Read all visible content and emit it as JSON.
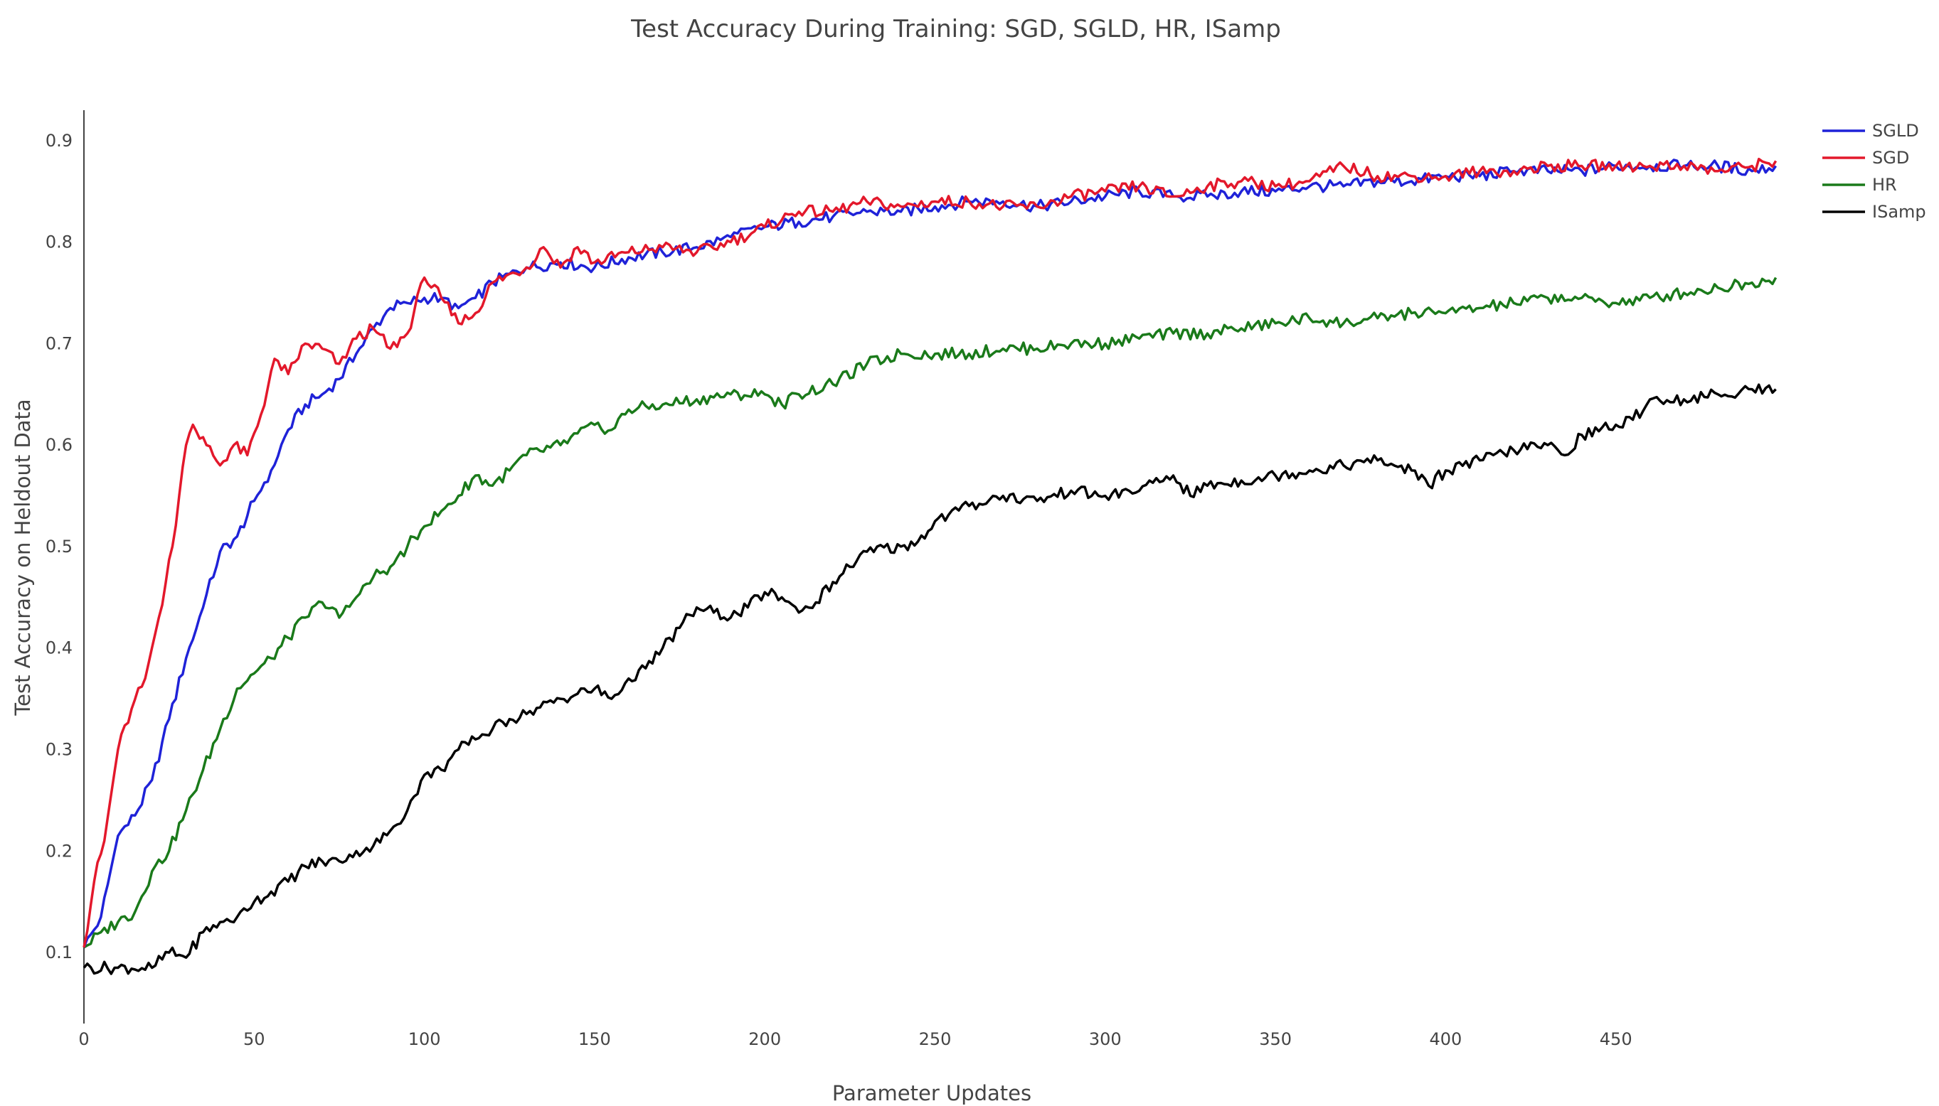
{
  "chart_data": {
    "type": "line",
    "title": "Test Accuracy During Training: SGD, SGLD, HR, ISamp",
    "xlabel": "Parameter Updates",
    "ylabel": "Test Accuracy on Heldout Data",
    "xlim": [
      0,
      500
    ],
    "ylim": [
      0.03,
      0.93
    ],
    "x_ticks": [
      0,
      50,
      100,
      150,
      200,
      250,
      300,
      350,
      400,
      450
    ],
    "y_ticks": [
      0.1,
      0.2,
      0.3,
      0.4,
      0.5,
      0.6,
      0.7,
      0.8,
      0.9
    ],
    "grid": false,
    "legend_position": "top-right",
    "series": [
      {
        "name": "SGLD",
        "color": "#1f22d8",
        "points": [
          [
            0,
            0.105
          ],
          [
            5,
            0.135
          ],
          [
            10,
            0.215
          ],
          [
            15,
            0.235
          ],
          [
            20,
            0.27
          ],
          [
            25,
            0.33
          ],
          [
            30,
            0.39
          ],
          [
            35,
            0.44
          ],
          [
            40,
            0.495
          ],
          [
            45,
            0.51
          ],
          [
            50,
            0.545
          ],
          [
            55,
            0.575
          ],
          [
            60,
            0.615
          ],
          [
            65,
            0.64
          ],
          [
            70,
            0.65
          ],
          [
            75,
            0.665
          ],
          [
            80,
            0.69
          ],
          [
            85,
            0.715
          ],
          [
            90,
            0.735
          ],
          [
            95,
            0.74
          ],
          [
            100,
            0.745
          ],
          [
            105,
            0.745
          ],
          [
            110,
            0.735
          ],
          [
            115,
            0.745
          ],
          [
            120,
            0.76
          ],
          [
            130,
            0.775
          ],
          [
            140,
            0.78
          ],
          [
            150,
            0.775
          ],
          [
            160,
            0.785
          ],
          [
            170,
            0.79
          ],
          [
            180,
            0.795
          ],
          [
            190,
            0.805
          ],
          [
            200,
            0.815
          ],
          [
            210,
            0.82
          ],
          [
            220,
            0.825
          ],
          [
            230,
            0.83
          ],
          [
            240,
            0.83
          ],
          [
            250,
            0.835
          ],
          [
            260,
            0.84
          ],
          [
            270,
            0.84
          ],
          [
            280,
            0.835
          ],
          [
            290,
            0.84
          ],
          [
            300,
            0.845
          ],
          [
            310,
            0.85
          ],
          [
            320,
            0.845
          ],
          [
            330,
            0.845
          ],
          [
            340,
            0.85
          ],
          [
            350,
            0.85
          ],
          [
            360,
            0.855
          ],
          [
            370,
            0.855
          ],
          [
            380,
            0.86
          ],
          [
            390,
            0.86
          ],
          [
            400,
            0.865
          ],
          [
            410,
            0.865
          ],
          [
            420,
            0.87
          ],
          [
            430,
            0.87
          ],
          [
            440,
            0.87
          ],
          [
            450,
            0.875
          ],
          [
            460,
            0.875
          ],
          [
            470,
            0.875
          ],
          [
            480,
            0.875
          ],
          [
            490,
            0.87
          ],
          [
            497,
            0.875
          ]
        ]
      },
      {
        "name": "SGD",
        "color": "#e3182b",
        "points": [
          [
            0,
            0.105
          ],
          [
            3,
            0.17
          ],
          [
            6,
            0.21
          ],
          [
            10,
            0.3
          ],
          [
            14,
            0.34
          ],
          [
            18,
            0.37
          ],
          [
            22,
            0.43
          ],
          [
            26,
            0.5
          ],
          [
            30,
            0.6
          ],
          [
            32,
            0.62
          ],
          [
            36,
            0.6
          ],
          [
            40,
            0.58
          ],
          [
            44,
            0.6
          ],
          [
            48,
            0.59
          ],
          [
            52,
            0.63
          ],
          [
            56,
            0.685
          ],
          [
            60,
            0.67
          ],
          [
            65,
            0.7
          ],
          [
            70,
            0.695
          ],
          [
            75,
            0.68
          ],
          [
            80,
            0.705
          ],
          [
            85,
            0.715
          ],
          [
            90,
            0.695
          ],
          [
            95,
            0.71
          ],
          [
            100,
            0.765
          ],
          [
            105,
            0.745
          ],
          [
            110,
            0.72
          ],
          [
            115,
            0.73
          ],
          [
            120,
            0.76
          ],
          [
            130,
            0.775
          ],
          [
            135,
            0.795
          ],
          [
            140,
            0.775
          ],
          [
            145,
            0.795
          ],
          [
            150,
            0.78
          ],
          [
            160,
            0.79
          ],
          [
            170,
            0.795
          ],
          [
            180,
            0.79
          ],
          [
            190,
            0.8
          ],
          [
            200,
            0.815
          ],
          [
            210,
            0.83
          ],
          [
            220,
            0.83
          ],
          [
            230,
            0.84
          ],
          [
            240,
            0.835
          ],
          [
            250,
            0.84
          ],
          [
            260,
            0.84
          ],
          [
            270,
            0.835
          ],
          [
            280,
            0.835
          ],
          [
            290,
            0.845
          ],
          [
            300,
            0.85
          ],
          [
            310,
            0.855
          ],
          [
            320,
            0.845
          ],
          [
            330,
            0.855
          ],
          [
            340,
            0.86
          ],
          [
            350,
            0.855
          ],
          [
            360,
            0.86
          ],
          [
            370,
            0.875
          ],
          [
            380,
            0.865
          ],
          [
            390,
            0.865
          ],
          [
            400,
            0.865
          ],
          [
            410,
            0.87
          ],
          [
            420,
            0.87
          ],
          [
            430,
            0.875
          ],
          [
            440,
            0.875
          ],
          [
            450,
            0.875
          ],
          [
            460,
            0.875
          ],
          [
            470,
            0.875
          ],
          [
            480,
            0.87
          ],
          [
            490,
            0.875
          ],
          [
            497,
            0.88
          ]
        ]
      },
      {
        "name": "HR",
        "color": "#1a7a1a",
        "points": [
          [
            0,
            0.105
          ],
          [
            5,
            0.12
          ],
          [
            10,
            0.13
          ],
          [
            15,
            0.14
          ],
          [
            20,
            0.18
          ],
          [
            25,
            0.2
          ],
          [
            30,
            0.24
          ],
          [
            35,
            0.28
          ],
          [
            40,
            0.32
          ],
          [
            45,
            0.36
          ],
          [
            50,
            0.375
          ],
          [
            55,
            0.39
          ],
          [
            60,
            0.41
          ],
          [
            65,
            0.43
          ],
          [
            70,
            0.445
          ],
          [
            75,
            0.43
          ],
          [
            80,
            0.45
          ],
          [
            85,
            0.47
          ],
          [
            90,
            0.48
          ],
          [
            95,
            0.5
          ],
          [
            100,
            0.52
          ],
          [
            105,
            0.535
          ],
          [
            110,
            0.55
          ],
          [
            115,
            0.57
          ],
          [
            120,
            0.56
          ],
          [
            125,
            0.575
          ],
          [
            130,
            0.59
          ],
          [
            140,
            0.6
          ],
          [
            150,
            0.62
          ],
          [
            155,
            0.615
          ],
          [
            160,
            0.635
          ],
          [
            170,
            0.64
          ],
          [
            180,
            0.645
          ],
          [
            190,
            0.65
          ],
          [
            200,
            0.65
          ],
          [
            205,
            0.64
          ],
          [
            210,
            0.65
          ],
          [
            220,
            0.66
          ],
          [
            230,
            0.68
          ],
          [
            240,
            0.69
          ],
          [
            250,
            0.69
          ],
          [
            260,
            0.69
          ],
          [
            270,
            0.695
          ],
          [
            280,
            0.695
          ],
          [
            290,
            0.7
          ],
          [
            300,
            0.7
          ],
          [
            310,
            0.705
          ],
          [
            320,
            0.71
          ],
          [
            330,
            0.71
          ],
          [
            340,
            0.715
          ],
          [
            350,
            0.72
          ],
          [
            360,
            0.725
          ],
          [
            370,
            0.72
          ],
          [
            380,
            0.725
          ],
          [
            390,
            0.73
          ],
          [
            400,
            0.73
          ],
          [
            410,
            0.735
          ],
          [
            420,
            0.74
          ],
          [
            430,
            0.745
          ],
          [
            440,
            0.745
          ],
          [
            450,
            0.74
          ],
          [
            460,
            0.745
          ],
          [
            470,
            0.75
          ],
          [
            480,
            0.755
          ],
          [
            490,
            0.76
          ],
          [
            497,
            0.765
          ]
        ]
      },
      {
        "name": "ISamp",
        "color": "#000000",
        "points": [
          [
            0,
            0.085
          ],
          [
            10,
            0.085
          ],
          [
            20,
            0.085
          ],
          [
            25,
            0.1
          ],
          [
            30,
            0.095
          ],
          [
            35,
            0.12
          ],
          [
            40,
            0.13
          ],
          [
            45,
            0.135
          ],
          [
            50,
            0.15
          ],
          [
            55,
            0.16
          ],
          [
            60,
            0.17
          ],
          [
            65,
            0.185
          ],
          [
            70,
            0.19
          ],
          [
            75,
            0.19
          ],
          [
            80,
            0.2
          ],
          [
            85,
            0.205
          ],
          [
            90,
            0.22
          ],
          [
            95,
            0.24
          ],
          [
            100,
            0.275
          ],
          [
            105,
            0.28
          ],
          [
            110,
            0.3
          ],
          [
            115,
            0.31
          ],
          [
            120,
            0.32
          ],
          [
            125,
            0.33
          ],
          [
            130,
            0.335
          ],
          [
            140,
            0.35
          ],
          [
            150,
            0.36
          ],
          [
            155,
            0.35
          ],
          [
            160,
            0.37
          ],
          [
            165,
            0.38
          ],
          [
            170,
            0.4
          ],
          [
            175,
            0.42
          ],
          [
            180,
            0.44
          ],
          [
            185,
            0.435
          ],
          [
            190,
            0.43
          ],
          [
            195,
            0.44
          ],
          [
            200,
            0.455
          ],
          [
            205,
            0.45
          ],
          [
            210,
            0.435
          ],
          [
            215,
            0.445
          ],
          [
            220,
            0.465
          ],
          [
            225,
            0.48
          ],
          [
            230,
            0.495
          ],
          [
            240,
            0.5
          ],
          [
            245,
            0.505
          ],
          [
            250,
            0.525
          ],
          [
            260,
            0.54
          ],
          [
            270,
            0.55
          ],
          [
            280,
            0.545
          ],
          [
            290,
            0.555
          ],
          [
            300,
            0.55
          ],
          [
            310,
            0.555
          ],
          [
            320,
            0.57
          ],
          [
            325,
            0.55
          ],
          [
            330,
            0.56
          ],
          [
            340,
            0.565
          ],
          [
            350,
            0.57
          ],
          [
            360,
            0.575
          ],
          [
            370,
            0.58
          ],
          [
            380,
            0.585
          ],
          [
            390,
            0.575
          ],
          [
            395,
            0.56
          ],
          [
            400,
            0.575
          ],
          [
            410,
            0.585
          ],
          [
            420,
            0.595
          ],
          [
            430,
            0.6
          ],
          [
            435,
            0.59
          ],
          [
            440,
            0.61
          ],
          [
            450,
            0.62
          ],
          [
            455,
            0.625
          ],
          [
            460,
            0.645
          ],
          [
            470,
            0.645
          ],
          [
            480,
            0.65
          ],
          [
            490,
            0.655
          ],
          [
            497,
            0.655
          ]
        ]
      }
    ]
  }
}
